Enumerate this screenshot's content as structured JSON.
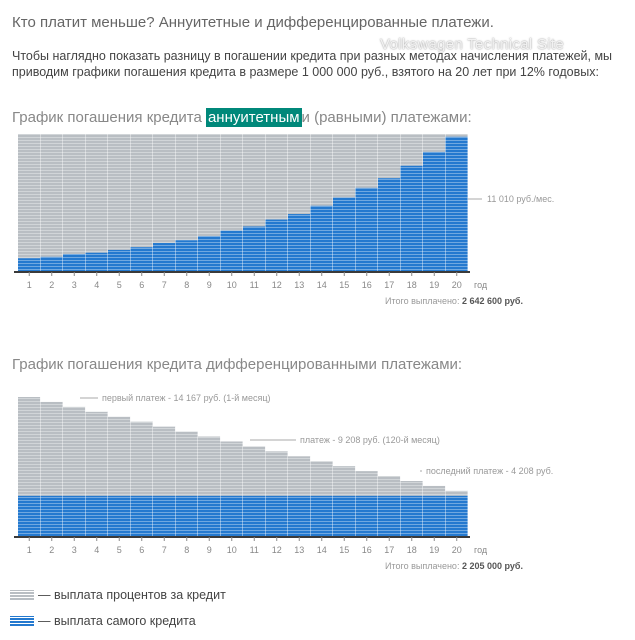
{
  "page": {
    "title": "Кто платит меньше? Аннуитетные и дифференцированные платежи.",
    "watermark": "Volkswagen Technical Site",
    "intro": "Чтобы наглядно показать разницу в погашении кредита при разных методах начисления платежей, мы приводим графики погашения кредита в размере 1 000 000 руб., взятого на 20 лет при 12% годовых:"
  },
  "colors": {
    "interest": "#b9bec3",
    "principal": "#2479cf",
    "axis": "#3a3a3a",
    "highlight": "#00887a"
  },
  "legend": {
    "interest_label": "— выплата процентов за кредит",
    "principal_label": "— выплата самого кредита"
  },
  "chart_data": [
    {
      "type": "area",
      "title_before": "График погашения кредита ",
      "title_highlight": "аннуитетным",
      "title_after": "и (равными) платежами:",
      "x": [
        1,
        2,
        3,
        4,
        5,
        6,
        7,
        8,
        9,
        10,
        11,
        12,
        13,
        14,
        15,
        16,
        17,
        18,
        19,
        20
      ],
      "x_unit": "год",
      "series": [
        {
          "name": "выплата самого кредита",
          "values": [
            0.1,
            0.11,
            0.13,
            0.14,
            0.16,
            0.18,
            0.21,
            0.23,
            0.26,
            0.3,
            0.33,
            0.38,
            0.42,
            0.48,
            0.54,
            0.61,
            0.68,
            0.77,
            0.87,
            0.98
          ]
        },
        {
          "name": "выплата процентов за кредит",
          "values": [
            0.9,
            0.89,
            0.87,
            0.86,
            0.84,
            0.82,
            0.79,
            0.77,
            0.74,
            0.7,
            0.67,
            0.62,
            0.58,
            0.52,
            0.46,
            0.39,
            0.32,
            0.23,
            0.13,
            0.02
          ]
        }
      ],
      "ylim": [
        0,
        1
      ],
      "annotations": [
        "11 010 руб./мес."
      ],
      "total_label": "Итого выплачено:",
      "total_value": "2 642 600 руб.",
      "grid": false
    },
    {
      "type": "area",
      "title": "График погашения кредита дифференцированными платежами:",
      "x": [
        1,
        2,
        3,
        4,
        5,
        6,
        7,
        8,
        9,
        10,
        11,
        12,
        13,
        14,
        15,
        16,
        17,
        18,
        19,
        20
      ],
      "x_unit": "год",
      "series": [
        {
          "name": "выплата самого кредита",
          "values": [
            4167,
            4167,
            4167,
            4167,
            4167,
            4167,
            4167,
            4167,
            4167,
            4167,
            4167,
            4167,
            4167,
            4167,
            4167,
            4167,
            4167,
            4167,
            4167,
            4167
          ]
        },
        {
          "name": "выплата процентов за кредит",
          "values": [
            10000,
            9500,
            9000,
            8500,
            8000,
            7500,
            7000,
            6500,
            6000,
            5500,
            5000,
            4500,
            4000,
            3500,
            3000,
            2500,
            2000,
            1500,
            1000,
            500
          ]
        }
      ],
      "ylim": [
        0,
        14167
      ],
      "annotations": [
        "первый платеж - 14 167 руб. (1-й месяц)",
        "платеж - 9 208 руб. (120-й месяц)",
        "последний платеж - 4 208 руб."
      ],
      "total_label": "Итого выплачено:",
      "total_value": "2 205 000 руб.",
      "grid": false
    }
  ]
}
